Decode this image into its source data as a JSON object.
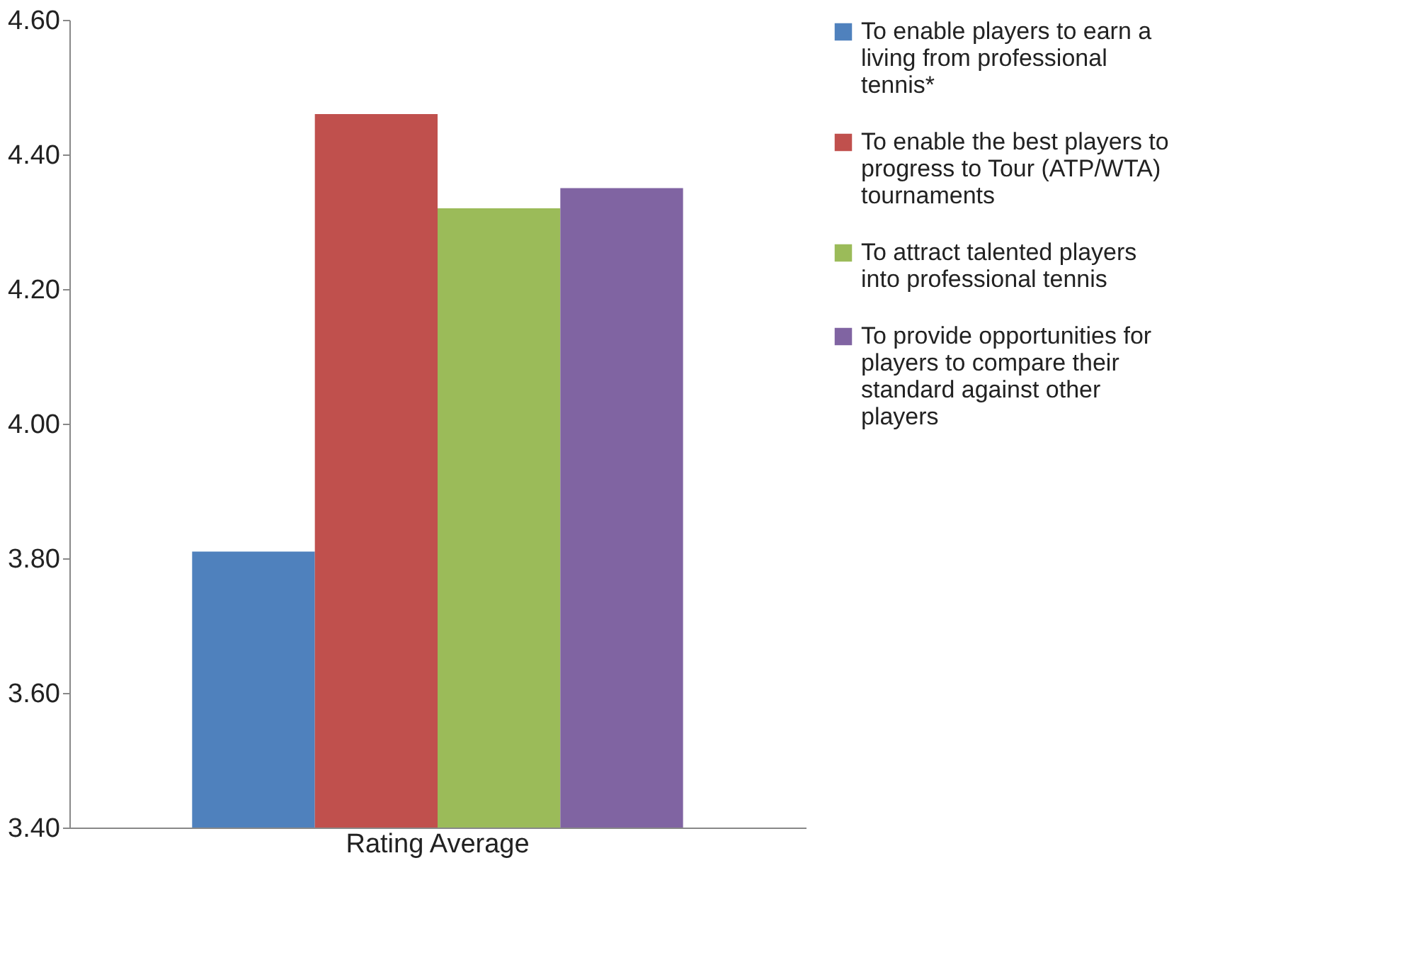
{
  "chart_data": {
    "type": "bar",
    "categories": [
      "Rating Average"
    ],
    "series": [
      {
        "name": "To enable players to earn a living from professional tennis*",
        "color": "#4f81bd",
        "values": [
          3.81
        ]
      },
      {
        "name": "To enable the best players to progress to Tour (ATP/WTA) tournaments",
        "color": "#c0504d",
        "values": [
          4.46
        ]
      },
      {
        "name": "To attract talented players into professional tennis",
        "color": "#9bbb59",
        "values": [
          4.32
        ]
      },
      {
        "name": "To provide opportunities for players to compare their standard against other players",
        "color": "#8064a2",
        "values": [
          4.35
        ]
      }
    ],
    "ylim": [
      3.4,
      4.6
    ],
    "yticks": [
      {
        "value": 3.4,
        "label": "3.40"
      },
      {
        "value": 3.6,
        "label": "3.60"
      },
      {
        "value": 3.8,
        "label": "3.80"
      },
      {
        "value": 4.0,
        "label": "4.00"
      },
      {
        "value": 4.2,
        "label": "4.20"
      },
      {
        "value": 4.4,
        "label": "4.40"
      },
      {
        "value": 4.6,
        "label": "4.60"
      }
    ],
    "grid": false,
    "legend": "right"
  }
}
